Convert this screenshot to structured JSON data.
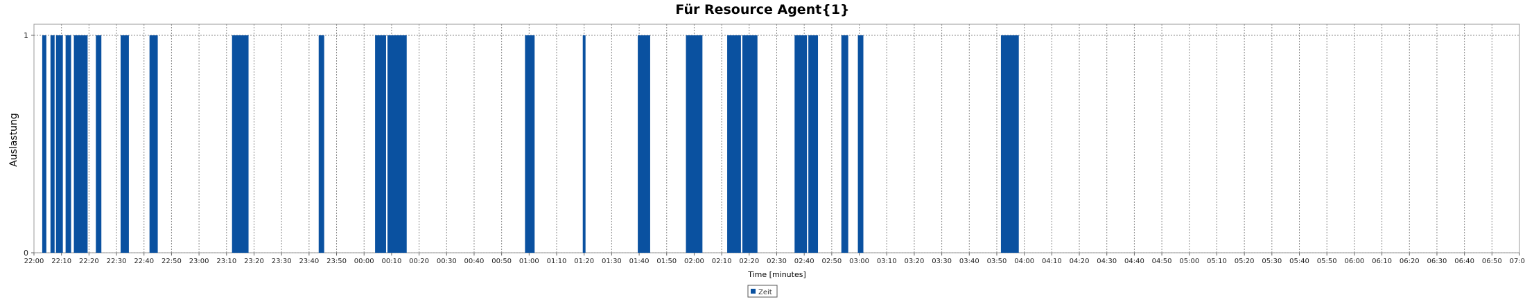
{
  "chart_data": {
    "type": "bar",
    "title": "Für Resource Agent{1}",
    "xlabel": "Time [minutes]",
    "ylabel": "Auslastung",
    "ylim": [
      0,
      1
    ],
    "yticks": [
      "0",
      "1"
    ],
    "xlim": [
      "22:00",
      "07:00"
    ],
    "xticks": [
      "22:00",
      "22:10",
      "22:20",
      "22:30",
      "22:40",
      "22:50",
      "23:00",
      "23:10",
      "23:20",
      "23:30",
      "23:40",
      "23:50",
      "00:00",
      "00:10",
      "00:20",
      "00:30",
      "00:40",
      "00:50",
      "01:00",
      "01:10",
      "01:20",
      "01:30",
      "01:40",
      "01:50",
      "02:00",
      "02:10",
      "02:20",
      "02:30",
      "02:40",
      "02:50",
      "03:00",
      "03:10",
      "03:20",
      "03:30",
      "03:40",
      "03:50",
      "04:00",
      "04:10",
      "04:20",
      "04:30",
      "04:40",
      "04:50",
      "05:00",
      "05:10",
      "05:20",
      "05:30",
      "05:40",
      "05:50",
      "06:00",
      "06:10",
      "06:20",
      "06:30",
      "06:40",
      "06:50",
      "07:00"
    ],
    "grid": true,
    "legend_position": "bottom",
    "series": [
      {
        "name": "Zeit",
        "color": "#0a51a0",
        "intervals": [
          {
            "start": "22:03.0",
            "end": "22:04.5",
            "value": 1
          },
          {
            "start": "22:06.0",
            "end": "22:07.5",
            "value": 1
          },
          {
            "start": "22:08.0",
            "end": "22:10.5",
            "value": 1
          },
          {
            "start": "22:11.5",
            "end": "22:13.5",
            "value": 1
          },
          {
            "start": "22:14.5",
            "end": "22:19.5",
            "value": 1
          },
          {
            "start": "22:22.5",
            "end": "22:24.5",
            "value": 1
          },
          {
            "start": "22:31.5",
            "end": "22:34.5",
            "value": 1
          },
          {
            "start": "22:42.0",
            "end": "22:45.0",
            "value": 1
          },
          {
            "start": "23:12.0",
            "end": "23:18.0",
            "value": 1
          },
          {
            "start": "23:43.5",
            "end": "23:45.5",
            "value": 1
          },
          {
            "start": "00:04.0",
            "end": "00:08.0",
            "value": 1
          },
          {
            "start": "00:08.5",
            "end": "00:15.5",
            "value": 1
          },
          {
            "start": "00:58.5",
            "end": "01:02.0",
            "value": 1
          },
          {
            "start": "01:19.5",
            "end": "01:20.5",
            "value": 1
          },
          {
            "start": "01:39.5",
            "end": "01:44.0",
            "value": 1
          },
          {
            "start": "01:57.0",
            "end": "02:03.0",
            "value": 1
          },
          {
            "start": "02:12.0",
            "end": "02:17.0",
            "value": 1
          },
          {
            "start": "02:17.5",
            "end": "02:23.0",
            "value": 1
          },
          {
            "start": "02:36.5",
            "end": "02:41.0",
            "value": 1
          },
          {
            "start": "02:41.5",
            "end": "02:45.0",
            "value": 1
          },
          {
            "start": "02:53.5",
            "end": "02:56.0",
            "value": 1
          },
          {
            "start": "02:59.5",
            "end": "03:01.5",
            "value": 1
          },
          {
            "start": "03:51.5",
            "end": "03:58.0",
            "value": 1
          }
        ]
      }
    ]
  }
}
